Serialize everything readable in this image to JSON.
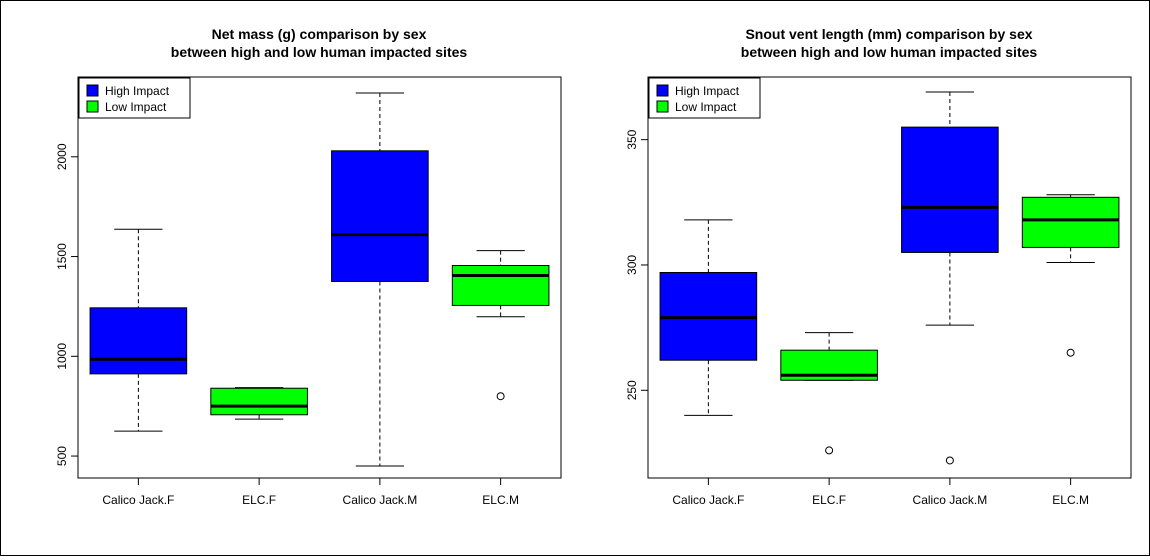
{
  "chart_data": [
    {
      "type": "boxplot",
      "title": "Net mass (g) comparison by sex",
      "subtitle": "between high and low human impacted sites",
      "xlabel": "",
      "ylabel": "",
      "categories": [
        "Calico Jack.F",
        "ELC.F",
        "Calico Jack.M",
        "ELC.M"
      ],
      "ylim": [
        390,
        2400
      ],
      "yticks": [
        500,
        1000,
        1500,
        2000
      ],
      "legend": {
        "position": "top-left",
        "entries": [
          {
            "label": "High Impact",
            "color": "#0000ff"
          },
          {
            "label": "Low Impact",
            "color": "#00ff00"
          }
        ]
      },
      "boxes": [
        {
          "category": "Calico Jack.F",
          "group": "High Impact",
          "color": "#0000ff",
          "lower_whisker": 625,
          "q1": 912,
          "median": 985,
          "q3": 1243,
          "upper_whisker": 1637,
          "outliers": []
        },
        {
          "category": "ELC.F",
          "group": "Low Impact",
          "color": "#00ff00",
          "lower_whisker": 685,
          "q1": 707,
          "median": 750,
          "q3": 840,
          "upper_whisker": 843,
          "outliers": []
        },
        {
          "category": "Calico Jack.M",
          "group": "High Impact",
          "color": "#0000ff",
          "lower_whisker": 450,
          "q1": 1375,
          "median": 1610,
          "q3": 2030,
          "upper_whisker": 2320,
          "outliers": []
        },
        {
          "category": "ELC.M",
          "group": "Low Impact",
          "color": "#00ff00",
          "lower_whisker": 1198,
          "q1": 1255,
          "median": 1405,
          "q3": 1455,
          "upper_whisker": 1530,
          "outliers": [
            800
          ]
        }
      ]
    },
    {
      "type": "boxplot",
      "title": "Snout vent length (mm) comparison by sex",
      "subtitle": "between high and low human impacted sites",
      "xlabel": "",
      "ylabel": "",
      "categories": [
        "Calico Jack.F",
        "ELC.F",
        "Calico Jack.M",
        "ELC.M"
      ],
      "ylim": [
        215,
        375
      ],
      "yticks": [
        250,
        300,
        350
      ],
      "legend": {
        "position": "top-left",
        "entries": [
          {
            "label": "High Impact",
            "color": "#0000ff"
          },
          {
            "label": "Low Impact",
            "color": "#00ff00"
          }
        ]
      },
      "boxes": [
        {
          "category": "Calico Jack.F",
          "group": "High Impact",
          "color": "#0000ff",
          "lower_whisker": 240,
          "q1": 262,
          "median": 279,
          "q3": 297,
          "upper_whisker": 318,
          "outliers": []
        },
        {
          "category": "ELC.F",
          "group": "Low Impact",
          "color": "#00ff00",
          "lower_whisker": 254,
          "q1": 254,
          "median": 256,
          "q3": 266,
          "upper_whisker": 273,
          "outliers": [
            226
          ]
        },
        {
          "category": "Calico Jack.M",
          "group": "High Impact",
          "color": "#0000ff",
          "lower_whisker": 276,
          "q1": 305,
          "median": 323,
          "q3": 355,
          "upper_whisker": 369,
          "outliers": [
            222
          ]
        },
        {
          "category": "ELC.M",
          "group": "Low Impact",
          "color": "#00ff00",
          "lower_whisker": 301,
          "q1": 307,
          "median": 318,
          "q3": 327,
          "upper_whisker": 328,
          "outliers": [
            265
          ]
        }
      ]
    }
  ]
}
